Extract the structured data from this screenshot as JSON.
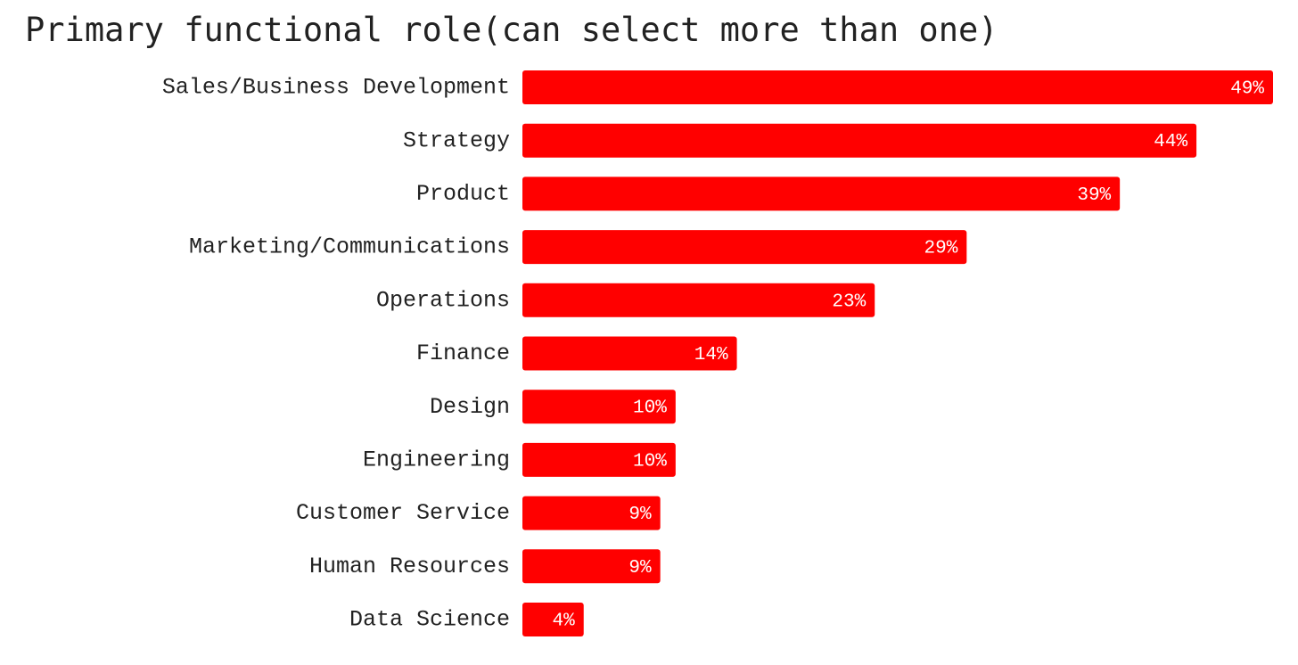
{
  "chart_data": {
    "type": "bar",
    "orientation": "horizontal",
    "title": "Primary functional role(can select more than one)",
    "xlabel": "",
    "ylabel": "",
    "categories": [
      "Sales/Business Development",
      "Strategy",
      "Product",
      "Marketing/Communications",
      "Operations",
      "Finance",
      "Design",
      "Engineering",
      "Customer Service",
      "Human Resources",
      "Data Science"
    ],
    "values": [
      49,
      44,
      39,
      29,
      23,
      14,
      10,
      10,
      9,
      9,
      4
    ],
    "value_labels": [
      "49%",
      "44%",
      "39%",
      "29%",
      "23%",
      "14%",
      "10%",
      "10%",
      "9%",
      "9%",
      "4%"
    ],
    "xlim": [
      0,
      49
    ],
    "grid": false,
    "legend": "none",
    "bar_color": "#ff0000",
    "value_label_color": "#ffffff"
  }
}
